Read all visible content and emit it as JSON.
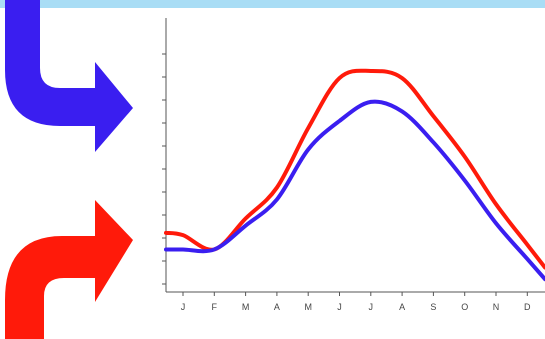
{
  "chart_data": {
    "type": "line",
    "title": "",
    "xlabel": "",
    "ylabel": "",
    "categories": [
      "J",
      "F",
      "M",
      "A",
      "M",
      "J",
      "J",
      "A",
      "S",
      "O",
      "N",
      "D"
    ],
    "ylim": [
      0,
      100
    ],
    "grid": false,
    "series": [
      {
        "color": "#ff1a0a",
        "values": [
          18,
          12,
          25,
          38,
          63,
          84,
          87,
          84,
          68,
          51,
          31,
          14
        ]
      },
      {
        "color": "#3a1ef0",
        "values": [
          12,
          12,
          22,
          33,
          54,
          66,
          74,
          70,
          57,
          41,
          23,
          8
        ]
      }
    ]
  },
  "arrows": {
    "upper_color": "#3a1ef0",
    "lower_color": "#ff1a0a"
  }
}
